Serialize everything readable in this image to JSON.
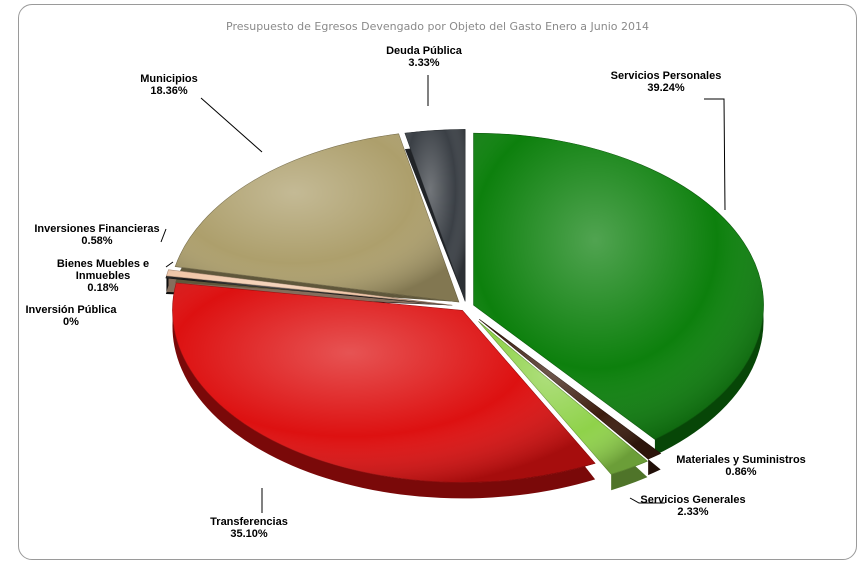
{
  "chart_data": {
    "type": "pie",
    "title": "Presupuesto de Egresos Devengado por Objeto del Gasto  Enero a  Junio 2014",
    "slices": [
      {
        "label": "Servicios Personales",
        "line2": "",
        "pct_text": "39.24%",
        "value": 39.24,
        "color": "#0d800d"
      },
      {
        "label": "Materiales y Suministros",
        "line2": "",
        "pct_text": "0.86%",
        "value": 0.86,
        "color": "#3c1c0e"
      },
      {
        "label": "Servicios Generales",
        "line2": "",
        "pct_text": "2.33%",
        "value": 2.33,
        "color": "#8fd24a"
      },
      {
        "label": "Transferencias",
        "line2": "",
        "pct_text": "35.10%",
        "value": 35.1,
        "color": "#dd1111"
      },
      {
        "label": "Inversión  Pública",
        "line2": "",
        "pct_text": "0%",
        "value": 0,
        "color": "#777777"
      },
      {
        "label": "Bienes Muebles e",
        "line2": "Inmuebles",
        "pct_text": "0.18%",
        "value": 0.18,
        "color": "#1a1a1a"
      },
      {
        "label": "Inversiones Financieras",
        "line2": "",
        "pct_text": "0.58%",
        "value": 0.58,
        "color": "#f1c7a8"
      },
      {
        "label": "Municipios",
        "line2": "",
        "pct_text": "18.36%",
        "value": 18.36,
        "color": "#ad9f6c"
      },
      {
        "label": "Deuda Pública",
        "line2": "",
        "pct_text": "3.33%",
        "value": 3.33,
        "color": "#3b4046"
      }
    ]
  }
}
